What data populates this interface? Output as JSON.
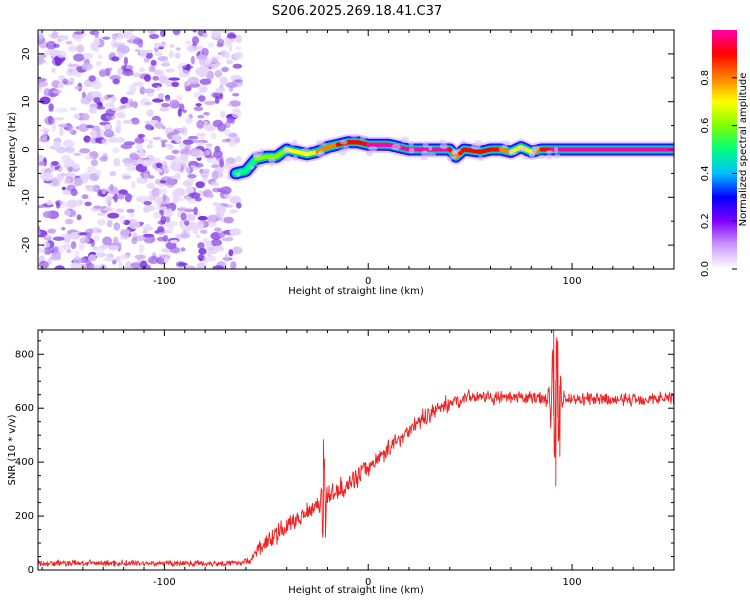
{
  "title": "S206.2025.269.18.41.C37",
  "chart_data": [
    {
      "type": "heatmap",
      "name": "spectrogram",
      "xlabel": "Height of straight line (km)",
      "ylabel": "Frequency (Hz)",
      "xlim": [
        -162,
        150
      ],
      "ylim": [
        -25,
        25
      ],
      "xticks": [
        "-100",
        "0",
        "100"
      ],
      "yticks": [
        "-20",
        "-10",
        "0",
        "10",
        "20"
      ],
      "colorbar": {
        "label": "Normalized spectral amplitude",
        "range": [
          0,
          1
        ],
        "ticks": [
          "0.0",
          "0.2",
          "0.4",
          "0.6",
          "0.8"
        ],
        "colors": [
          "#ffffff",
          "#cc99ff",
          "#7f00ff",
          "#0000ff",
          "#00bfff",
          "#00ff7f",
          "#7fff00",
          "#ffff00",
          "#ff8000",
          "#ff0000",
          "#ff00aa"
        ]
      },
      "noise_region_x": [
        -162,
        -65
      ],
      "signal_trace": {
        "x": [
          -65,
          -60,
          -55,
          -50,
          -45,
          -40,
          -35,
          -30,
          -25,
          -20,
          -15,
          -10,
          -5,
          0,
          10,
          20,
          30,
          40,
          43,
          47,
          55,
          60,
          65,
          70,
          75,
          80,
          85,
          90,
          100,
          120,
          150
        ],
        "freq": [
          -5,
          -4.5,
          -2,
          -1.5,
          -1.5,
          0,
          -0.5,
          -1,
          -0.5,
          0.5,
          1,
          1.5,
          1.5,
          1,
          1,
          0,
          0,
          0,
          -1.5,
          0,
          -0.5,
          0,
          0,
          -0.5,
          0.5,
          -0.5,
          0,
          0,
          0,
          0,
          0
        ],
        "amplitude": [
          0.45,
          0.5,
          0.55,
          0.6,
          0.6,
          0.65,
          0.65,
          0.7,
          0.75,
          0.8,
          0.85,
          0.9,
          0.9,
          0.95,
          0.95,
          0.98,
          0.98,
          0.95,
          0.8,
          0.9,
          0.9,
          0.9,
          0.85,
          0.75,
          0.7,
          0.7,
          0.85,
          0.95,
          0.97,
          0.97,
          0.97
        ]
      }
    },
    {
      "type": "line",
      "name": "snr",
      "xlabel": "Height of straight line (km)",
      "ylabel": "SNR (10 * v/v)",
      "xlim": [
        -162,
        150
      ],
      "ylim": [
        0,
        890
      ],
      "xticks": [
        "-100",
        "0",
        "100"
      ],
      "yticks": [
        "0",
        "200",
        "400",
        "600",
        "800"
      ],
      "color": "#ee2222",
      "trend": {
        "x": [
          -162,
          -65,
          -58,
          -55,
          -50,
          -45,
          -40,
          -30,
          -20,
          -10,
          0,
          10,
          20,
          30,
          40,
          50,
          60,
          70,
          80,
          90,
          100,
          120,
          150
        ],
        "y": [
          25,
          25,
          35,
          70,
          100,
          130,
          160,
          220,
          270,
          320,
          380,
          450,
          520,
          580,
          620,
          645,
          640,
          635,
          640,
          635,
          635,
          630,
          640
        ]
      },
      "noise_amplitude": [
        {
          "x_from": -162,
          "x_to": -55,
          "amp": 14
        },
        {
          "x_from": -55,
          "x_to": 0,
          "amp": 45
        },
        {
          "x_from": 0,
          "x_to": 40,
          "amp": 40
        },
        {
          "x_from": 40,
          "x_to": 150,
          "amp": 30
        }
      ],
      "spikes": [
        {
          "x": -22,
          "y": 485
        },
        {
          "x": -21,
          "y": 120
        },
        {
          "x": 91,
          "y": 890
        },
        {
          "x": 92,
          "y": 310
        },
        {
          "x": 93,
          "y": 850
        },
        {
          "x": 94,
          "y": 420
        }
      ]
    }
  ]
}
